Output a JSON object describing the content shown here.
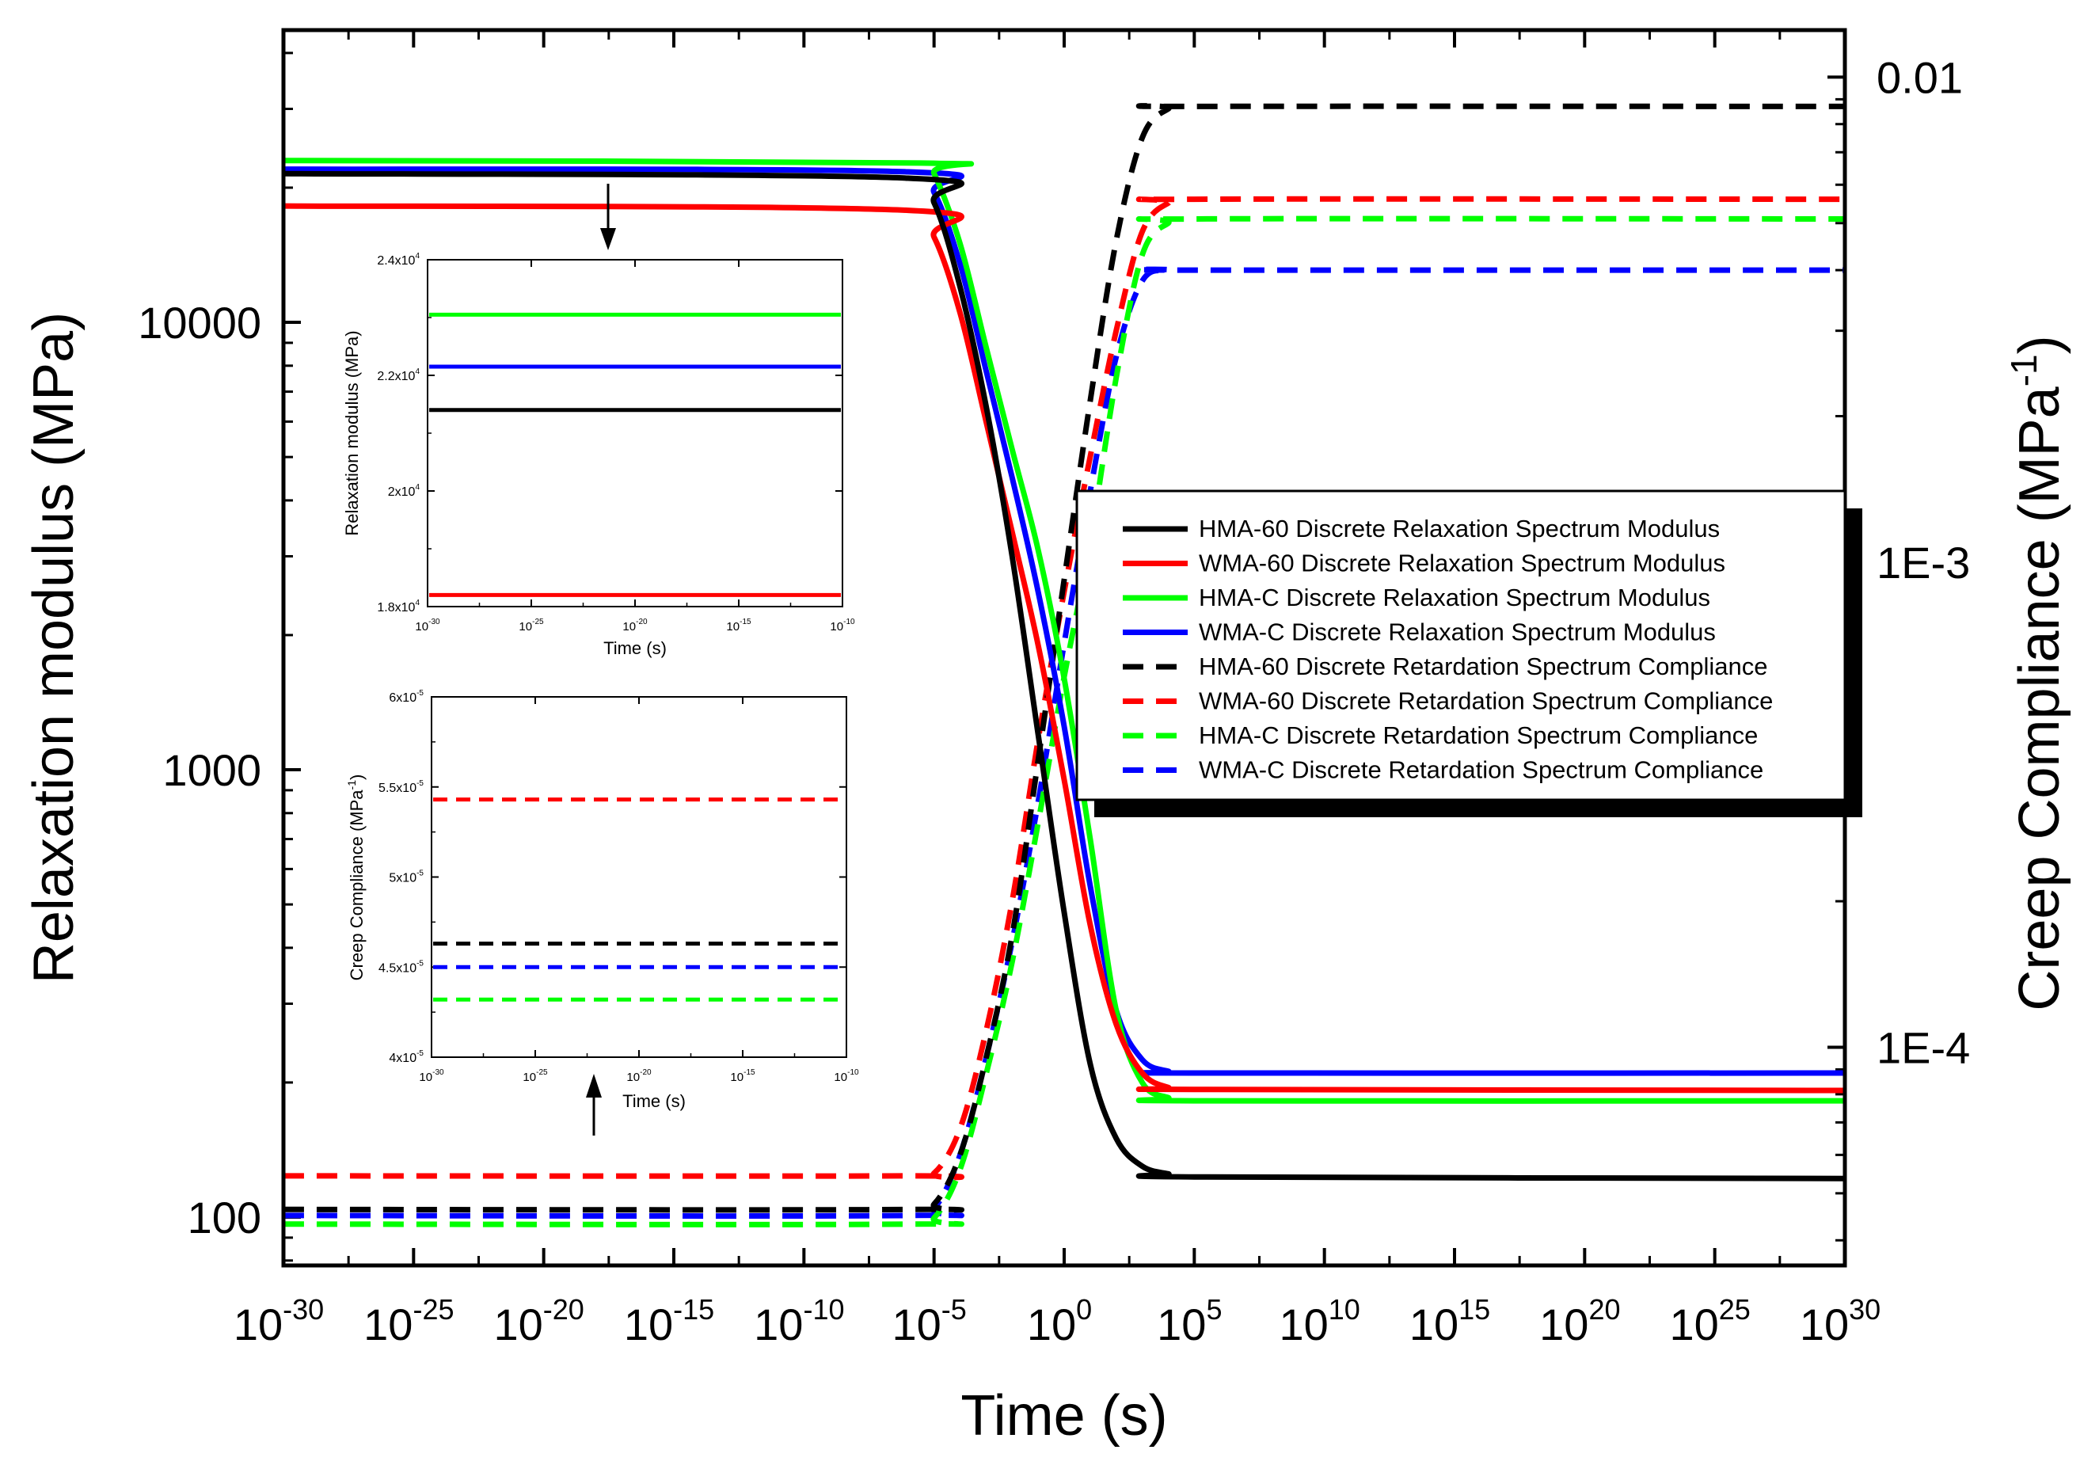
{
  "chart_data": [
    {
      "type": "line",
      "name": "main",
      "xlabel": "Time (s)",
      "ylabel": "Relaxation modulus (MPa)",
      "y2label": "Creep Compliance (MPa",
      "y2label_sup": "-1",
      "y2label_close": ")",
      "x_scale": "log10",
      "y_scale": "log10",
      "y2_scale": "log10",
      "xlim_exp": [
        -30,
        30
      ],
      "ylim": [
        78,
        45000
      ],
      "y2lim": [
        3.55e-05,
        0.0125
      ],
      "x_ticks_exp": [
        -30,
        -25,
        -20,
        -15,
        -10,
        -5,
        0,
        5,
        10,
        15,
        20,
        25,
        30
      ],
      "y_tick_labels": [
        {
          "value": 100,
          "label": "100"
        },
        {
          "value": 1000,
          "label": "1000"
        },
        {
          "value": 10000,
          "label": "10000"
        }
      ],
      "y2_tick_labels": [
        {
          "value": 0.0001,
          "label": "1E-4"
        },
        {
          "value": 0.001,
          "label": "1E-3"
        },
        {
          "value": 0.01,
          "label": "0.01"
        }
      ],
      "legend_position": "center-right",
      "series": [
        {
          "name": "HMA-60 Discrete Relaxation Spectrum Modulus",
          "color": "#000000",
          "dashed": false,
          "axis": "left",
          "x_exp": [
            -30,
            -6,
            -5,
            -4,
            -3,
            -2,
            -1,
            0,
            1,
            2,
            3,
            4,
            5,
            30
          ],
          "y": [
            21500,
            21000,
            18500,
            12000,
            6500,
            3000,
            1200,
            480,
            220,
            150,
            130,
            125,
            123,
            122
          ]
        },
        {
          "name": "WMA-60 Discrete Relaxation Spectrum Modulus",
          "color": "#ff0000",
          "dashed": false,
          "axis": "left",
          "x_exp": [
            -30,
            -6,
            -5,
            -4,
            -3,
            -2,
            -1,
            0,
            1,
            2,
            3,
            4,
            5,
            30
          ],
          "y": [
            18200,
            17800,
            15500,
            10500,
            6000,
            3400,
            1900,
            950,
            450,
            270,
            210,
            195,
            193,
            192
          ]
        },
        {
          "name": "HMA-C Discrete Relaxation Spectrum Modulus",
          "color": "#00ff00",
          "dashed": false,
          "axis": "left",
          "x_exp": [
            -30,
            -5.5,
            -5,
            -4,
            -3,
            -2,
            -1,
            0,
            1,
            2,
            3,
            4,
            5,
            30
          ],
          "y": [
            23000,
            22700,
            21500,
            15000,
            8800,
            5200,
            3100,
            1600,
            700,
            290,
            200,
            185,
            182,
            182
          ]
        },
        {
          "name": "WMA-C Discrete Relaxation Spectrum Modulus",
          "color": "#0000ff",
          "dashed": false,
          "axis": "left",
          "x_exp": [
            -30,
            -6,
            -5,
            -4,
            -3,
            -2,
            -1,
            0,
            1,
            2,
            3,
            4,
            5,
            30
          ],
          "y": [
            22000,
            21700,
            19500,
            13500,
            7800,
            4500,
            2500,
            1250,
            550,
            290,
            225,
            212,
            210,
            210
          ]
        },
        {
          "name": "HMA-60 Discrete Retardation Spectrum Compliance",
          "color": "#000000",
          "dashed": true,
          "axis": "right",
          "x_exp": [
            -30,
            -6,
            -5,
            -4,
            -3,
            -2,
            -1,
            0,
            1,
            2,
            3,
            4,
            5,
            30
          ],
          "y": [
            4.63e-05,
            4.63e-05,
            4.75e-05,
            6e-05,
            9.5e-05,
            0.00017,
            0.00039,
            0.00092,
            0.00215,
            0.0046,
            0.0075,
            0.0086,
            0.0087,
            0.0087
          ]
        },
        {
          "name": "WMA-60 Discrete Retardation Spectrum Compliance",
          "color": "#ff0000",
          "dashed": true,
          "axis": "right",
          "x_exp": [
            -30,
            -6,
            -5,
            -4,
            -3,
            -2,
            -1,
            0,
            1,
            2,
            3,
            4,
            5,
            30
          ],
          "y": [
            5.43e-05,
            5.43e-05,
            5.5e-05,
            6.8e-05,
            0.000108,
            0.0002,
            0.00043,
            0.00087,
            0.00165,
            0.003,
            0.0048,
            0.0055,
            0.0056,
            0.0056
          ]
        },
        {
          "name": "HMA-C Discrete Retardation Spectrum Compliance",
          "color": "#00ff00",
          "dashed": true,
          "axis": "right",
          "x_exp": [
            -30,
            -6,
            -5,
            -4,
            -3,
            -2,
            -1,
            0,
            1,
            2,
            3,
            4,
            5,
            30
          ],
          "y": [
            4.32e-05,
            4.32e-05,
            4.45e-05,
            5.6e-05,
            8.8e-05,
            0.00015,
            0.00029,
            0.00058,
            0.0011,
            0.0024,
            0.0043,
            0.005,
            0.0051,
            0.0051
          ]
        },
        {
          "name": "WMA-C Discrete Retardation Spectrum Compliance",
          "color": "#0000ff",
          "dashed": true,
          "axis": "right",
          "x_exp": [
            -30,
            -6,
            -5,
            -4,
            -3,
            -2,
            -1,
            0,
            1,
            2,
            3,
            4,
            5,
            30
          ],
          "y": [
            4.5e-05,
            4.5e-05,
            4.65e-05,
            6e-05,
            9.5e-05,
            0.000165,
            0.00032,
            0.00068,
            0.0014,
            0.00265,
            0.0038,
            0.004,
            0.004,
            0.004
          ]
        }
      ]
    },
    {
      "type": "line",
      "name": "inset-relaxation",
      "xlabel": "Time (s)",
      "ylabel": "Relaxation modulus (MPa)",
      "xlim_exp": [
        -30,
        -10
      ],
      "ylim": [
        18000,
        24000
      ],
      "x_ticks_exp": [
        -30,
        -25,
        -20,
        -15,
        -10
      ],
      "y_tick_labels": [
        {
          "value": 18000,
          "mant": "1.8x10",
          "exp": "4"
        },
        {
          "value": 20000,
          "mant": "2x10",
          "exp": "4"
        },
        {
          "value": 22000,
          "mant": "2.2x10",
          "exp": "4"
        },
        {
          "value": 24000,
          "mant": "2.4x10",
          "exp": "4"
        }
      ],
      "series": [
        {
          "name": "HMA-C",
          "color": "#00ff00",
          "dashed": false,
          "y": 23050
        },
        {
          "name": "WMA-C",
          "color": "#0000ff",
          "dashed": false,
          "y": 22150
        },
        {
          "name": "HMA-60",
          "color": "#000000",
          "dashed": false,
          "y": 21400
        },
        {
          "name": "WMA-60",
          "color": "#ff0000",
          "dashed": false,
          "y": 18200
        }
      ]
    },
    {
      "type": "line",
      "name": "inset-compliance",
      "xlabel": "Time (s)",
      "ylabel": "Creep Compliance (MPa",
      "ylabel_sup": "-1",
      "ylabel_close": ")",
      "xlim_exp": [
        -30,
        -10
      ],
      "ylim": [
        4e-05,
        6e-05
      ],
      "x_ticks_exp": [
        -30,
        -25,
        -20,
        -15,
        -10
      ],
      "y_tick_labels": [
        {
          "value": 4e-05,
          "mant": "4x10",
          "exp": "-5"
        },
        {
          "value": 4.5e-05,
          "mant": "4.5x10",
          "exp": "-5"
        },
        {
          "value": 5e-05,
          "mant": "5x10",
          "exp": "-5"
        },
        {
          "value": 5.5e-05,
          "mant": "5.5x10",
          "exp": "-5"
        },
        {
          "value": 6e-05,
          "mant": "6x10",
          "exp": "-5"
        }
      ],
      "series": [
        {
          "name": "WMA-60",
          "color": "#ff0000",
          "dashed": true,
          "y": 5.43e-05
        },
        {
          "name": "HMA-60",
          "color": "#000000",
          "dashed": true,
          "y": 4.63e-05
        },
        {
          "name": "WMA-C",
          "color": "#0000ff",
          "dashed": true,
          "y": 4.5e-05
        },
        {
          "name": "HMA-C",
          "color": "#00ff00",
          "dashed": true,
          "y": 4.32e-05
        }
      ]
    }
  ]
}
